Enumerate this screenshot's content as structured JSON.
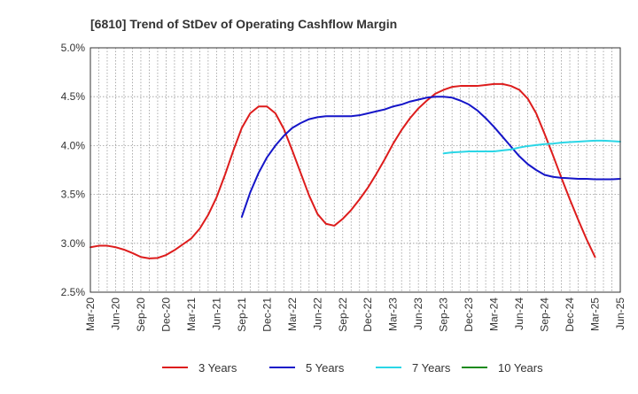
{
  "chart_data": {
    "type": "line",
    "title": "[6810]  Trend of StDev of Operating Cashflow Margin",
    "xlabel": "",
    "ylabel": "",
    "ylim": [
      2.5,
      5.0
    ],
    "y_ticks": [
      "2.5%",
      "3.0%",
      "3.5%",
      "4.0%",
      "4.5%",
      "5.0%"
    ],
    "y_tick_values": [
      2.5,
      3.0,
      3.5,
      4.0,
      4.5,
      5.0
    ],
    "x_ticks": [
      "Mar-20",
      "Jun-20",
      "Sep-20",
      "Dec-20",
      "Mar-21",
      "Jun-21",
      "Sep-21",
      "Dec-21",
      "Mar-22",
      "Jun-22",
      "Sep-22",
      "Dec-22",
      "Mar-23",
      "Jun-23",
      "Sep-23",
      "Dec-23",
      "Mar-24",
      "Jun-24",
      "Sep-24",
      "Dec-24",
      "Mar-25",
      "Jun-25"
    ],
    "grid": true,
    "legend_position": "bottom",
    "series": [
      {
        "name": "3 Years",
        "color": "#dd1c1c",
        "start_month_index": 0,
        "values": [
          2.96,
          2.975,
          2.975,
          2.96,
          2.935,
          2.9,
          2.86,
          2.845,
          2.85,
          2.88,
          2.93,
          2.99,
          3.05,
          3.15,
          3.29,
          3.47,
          3.7,
          3.95,
          4.18,
          4.33,
          4.4,
          4.4,
          4.33,
          4.17,
          3.95,
          3.72,
          3.49,
          3.3,
          3.2,
          3.18,
          3.25,
          3.34,
          3.45,
          3.57,
          3.71,
          3.86,
          4.02,
          4.16,
          4.28,
          4.38,
          4.46,
          4.53,
          4.57,
          4.6,
          4.61,
          4.61,
          4.61,
          4.62,
          4.63,
          4.63,
          4.61,
          4.57,
          4.48,
          4.33,
          4.12,
          3.9,
          3.67,
          3.45,
          3.24,
          3.04,
          2.86
        ]
      },
      {
        "name": "5 Years",
        "color": "#1515c8",
        "start_month_index": 18,
        "values": [
          3.27,
          3.52,
          3.72,
          3.88,
          4.0,
          4.1,
          4.18,
          4.23,
          4.27,
          4.29,
          4.3,
          4.3,
          4.3,
          4.3,
          4.31,
          4.33,
          4.35,
          4.37,
          4.4,
          4.42,
          4.45,
          4.47,
          4.49,
          4.5,
          4.5,
          4.49,
          4.46,
          4.42,
          4.36,
          4.28,
          4.19,
          4.09,
          3.99,
          3.89,
          3.81,
          3.75,
          3.7,
          3.68,
          3.67,
          3.665,
          3.66,
          3.66,
          3.655,
          3.655,
          3.655,
          3.66
        ]
      },
      {
        "name": "7 Years",
        "color": "#2ad6e6",
        "start_month_index": 42,
        "values": [
          3.92,
          3.93,
          3.935,
          3.94,
          3.94,
          3.94,
          3.94,
          3.95,
          3.96,
          3.98,
          3.995,
          4.005,
          4.015,
          4.02,
          4.03,
          4.035,
          4.04,
          4.045,
          4.05,
          4.05,
          4.045,
          4.04
        ]
      },
      {
        "name": "10 Years",
        "color": "#1a8a1a",
        "start_month_index": 0,
        "values": []
      }
    ]
  }
}
